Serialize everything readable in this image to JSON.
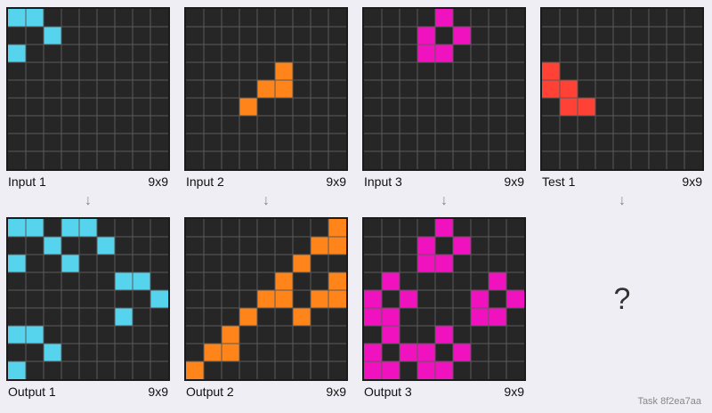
{
  "colors": {
    "background": "#262626",
    "gridline": "#5a5a5a",
    "frame": "#1b1b1b",
    "palette": {
      "0": "#262626",
      "2": "#ff4136",
      "6": "#f012be",
      "7": "#ff851b",
      "8": "#56d3ed"
    }
  },
  "panels": [
    {
      "id": "input-1",
      "title": "Input 1",
      "size": "9x9",
      "cells": [
        [
          8,
          8,
          0,
          0,
          0,
          0,
          0,
          0,
          0
        ],
        [
          0,
          0,
          8,
          0,
          0,
          0,
          0,
          0,
          0
        ],
        [
          8,
          0,
          0,
          0,
          0,
          0,
          0,
          0,
          0
        ],
        [
          0,
          0,
          0,
          0,
          0,
          0,
          0,
          0,
          0
        ],
        [
          0,
          0,
          0,
          0,
          0,
          0,
          0,
          0,
          0
        ],
        [
          0,
          0,
          0,
          0,
          0,
          0,
          0,
          0,
          0
        ],
        [
          0,
          0,
          0,
          0,
          0,
          0,
          0,
          0,
          0
        ],
        [
          0,
          0,
          0,
          0,
          0,
          0,
          0,
          0,
          0
        ],
        [
          0,
          0,
          0,
          0,
          0,
          0,
          0,
          0,
          0
        ]
      ]
    },
    {
      "id": "input-2",
      "title": "Input 2",
      "size": "9x9",
      "cells": [
        [
          0,
          0,
          0,
          0,
          0,
          0,
          0,
          0,
          0
        ],
        [
          0,
          0,
          0,
          0,
          0,
          0,
          0,
          0,
          0
        ],
        [
          0,
          0,
          0,
          0,
          0,
          0,
          0,
          0,
          0
        ],
        [
          0,
          0,
          0,
          0,
          0,
          7,
          0,
          0,
          0
        ],
        [
          0,
          0,
          0,
          0,
          7,
          7,
          0,
          0,
          0
        ],
        [
          0,
          0,
          0,
          7,
          0,
          0,
          0,
          0,
          0
        ],
        [
          0,
          0,
          0,
          0,
          0,
          0,
          0,
          0,
          0
        ],
        [
          0,
          0,
          0,
          0,
          0,
          0,
          0,
          0,
          0
        ],
        [
          0,
          0,
          0,
          0,
          0,
          0,
          0,
          0,
          0
        ]
      ]
    },
    {
      "id": "input-3",
      "title": "Input 3",
      "size": "9x9",
      "cells": [
        [
          0,
          0,
          0,
          0,
          6,
          0,
          0,
          0,
          0
        ],
        [
          0,
          0,
          0,
          6,
          0,
          6,
          0,
          0,
          0
        ],
        [
          0,
          0,
          0,
          6,
          6,
          0,
          0,
          0,
          0
        ],
        [
          0,
          0,
          0,
          0,
          0,
          0,
          0,
          0,
          0
        ],
        [
          0,
          0,
          0,
          0,
          0,
          0,
          0,
          0,
          0
        ],
        [
          0,
          0,
          0,
          0,
          0,
          0,
          0,
          0,
          0
        ],
        [
          0,
          0,
          0,
          0,
          0,
          0,
          0,
          0,
          0
        ],
        [
          0,
          0,
          0,
          0,
          0,
          0,
          0,
          0,
          0
        ],
        [
          0,
          0,
          0,
          0,
          0,
          0,
          0,
          0,
          0
        ]
      ]
    },
    {
      "id": "test-1",
      "title": "Test 1",
      "size": "9x9",
      "cells": [
        [
          0,
          0,
          0,
          0,
          0,
          0,
          0,
          0,
          0
        ],
        [
          0,
          0,
          0,
          0,
          0,
          0,
          0,
          0,
          0
        ],
        [
          0,
          0,
          0,
          0,
          0,
          0,
          0,
          0,
          0
        ],
        [
          2,
          0,
          0,
          0,
          0,
          0,
          0,
          0,
          0
        ],
        [
          2,
          2,
          0,
          0,
          0,
          0,
          0,
          0,
          0
        ],
        [
          0,
          2,
          2,
          0,
          0,
          0,
          0,
          0,
          0
        ],
        [
          0,
          0,
          0,
          0,
          0,
          0,
          0,
          0,
          0
        ],
        [
          0,
          0,
          0,
          0,
          0,
          0,
          0,
          0,
          0
        ],
        [
          0,
          0,
          0,
          0,
          0,
          0,
          0,
          0,
          0
        ]
      ]
    },
    {
      "id": "output-1",
      "title": "Output 1",
      "size": "9x9",
      "cells": [
        [
          8,
          8,
          0,
          8,
          8,
          0,
          0,
          0,
          0
        ],
        [
          0,
          0,
          8,
          0,
          0,
          8,
          0,
          0,
          0
        ],
        [
          8,
          0,
          0,
          8,
          0,
          0,
          0,
          0,
          0
        ],
        [
          0,
          0,
          0,
          0,
          0,
          0,
          8,
          8,
          0
        ],
        [
          0,
          0,
          0,
          0,
          0,
          0,
          0,
          0,
          8
        ],
        [
          0,
          0,
          0,
          0,
          0,
          0,
          8,
          0,
          0
        ],
        [
          8,
          8,
          0,
          0,
          0,
          0,
          0,
          0,
          0
        ],
        [
          0,
          0,
          8,
          0,
          0,
          0,
          0,
          0,
          0
        ],
        [
          8,
          0,
          0,
          0,
          0,
          0,
          0,
          0,
          0
        ]
      ]
    },
    {
      "id": "output-2",
      "title": "Output 2",
      "size": "9x9",
      "cells": [
        [
          0,
          0,
          0,
          0,
          0,
          0,
          0,
          0,
          7
        ],
        [
          0,
          0,
          0,
          0,
          0,
          0,
          0,
          7,
          7
        ],
        [
          0,
          0,
          0,
          0,
          0,
          0,
          7,
          0,
          0
        ],
        [
          0,
          0,
          0,
          0,
          0,
          7,
          0,
          0,
          7
        ],
        [
          0,
          0,
          0,
          0,
          7,
          7,
          0,
          7,
          7
        ],
        [
          0,
          0,
          0,
          7,
          0,
          0,
          7,
          0,
          0
        ],
        [
          0,
          0,
          7,
          0,
          0,
          0,
          0,
          0,
          0
        ],
        [
          0,
          7,
          7,
          0,
          0,
          0,
          0,
          0,
          0
        ],
        [
          7,
          0,
          0,
          0,
          0,
          0,
          0,
          0,
          0
        ]
      ]
    },
    {
      "id": "output-3",
      "title": "Output 3",
      "size": "9x9",
      "cells": [
        [
          0,
          0,
          0,
          0,
          6,
          0,
          0,
          0,
          0
        ],
        [
          0,
          0,
          0,
          6,
          0,
          6,
          0,
          0,
          0
        ],
        [
          0,
          0,
          0,
          6,
          6,
          0,
          0,
          0,
          0
        ],
        [
          0,
          6,
          0,
          0,
          0,
          0,
          0,
          6,
          0
        ],
        [
          6,
          0,
          6,
          0,
          0,
          0,
          6,
          0,
          6
        ],
        [
          6,
          6,
          0,
          0,
          0,
          0,
          6,
          6,
          0
        ],
        [
          0,
          6,
          0,
          0,
          6,
          0,
          0,
          0,
          0
        ],
        [
          6,
          0,
          6,
          6,
          0,
          6,
          0,
          0,
          0
        ],
        [
          6,
          6,
          0,
          6,
          6,
          0,
          0,
          0,
          0
        ]
      ]
    }
  ],
  "arrow_glyph": "↓",
  "unknown_output": "?",
  "task_label": "Task 8f2ea7aa"
}
